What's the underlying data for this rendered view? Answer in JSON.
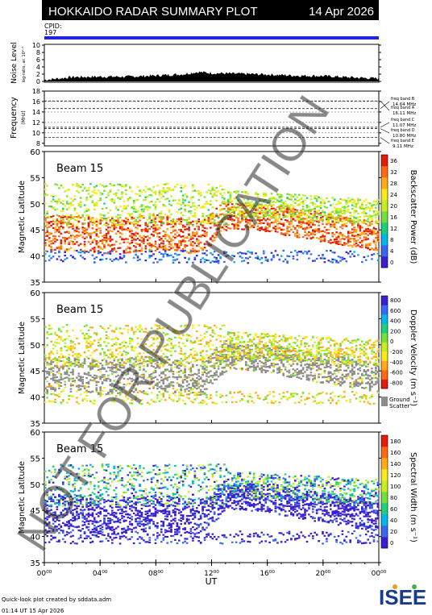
{
  "header": {
    "title": "HOKKAIDO RADAR SUMMARY PLOT",
    "date": "14 Apr 2026",
    "cpid_label": "CPID:",
    "cpid_value": "197"
  },
  "noise_panel": {
    "ylabel": "Noise Level",
    "sublabel": "log-ratio, ar. 10²⁻⁵",
    "ticks": [
      "0",
      "2",
      "4",
      "6",
      "8",
      "10"
    ]
  },
  "freq_panel": {
    "ylabel": "Frequency",
    "unit": "(MHz)",
    "ticks": [
      "8",
      "10",
      "12",
      "14",
      "16",
      "18"
    ],
    "bands": [
      {
        "name": "freq band A",
        "value": "16.11 MHz",
        "mhz": 16.11
      },
      {
        "name": "freq band B",
        "value": "14.64 MHz",
        "mhz": 14.64
      },
      {
        "name": "freq band C",
        "value": "11.07 MHz",
        "mhz": 11.07
      },
      {
        "name": "freq band D",
        "value": "10.80 MHz",
        "mhz": 10.8
      },
      {
        "name": "freq band E",
        "value": "9.11 MHz",
        "mhz": 9.11
      }
    ]
  },
  "panels": [
    {
      "beam": "Beam 15",
      "ylabel": "Magnetic Latitude",
      "cbar_label": "Backscatter Power (dB)",
      "cbar_ticks": [
        "0",
        "4",
        "8",
        "12",
        "16",
        "20",
        "24",
        "28",
        "32",
        "36"
      ],
      "palette": "power",
      "ground": false
    },
    {
      "beam": "Beam 15",
      "ylabel": "Magnetic Latitude",
      "cbar_label": "Doppler Velocity (m s⁻¹)",
      "cbar_ticks": [
        "-800",
        "-600",
        "-400",
        "-200",
        "0",
        "200",
        "400",
        "600",
        "800"
      ],
      "palette": "velocity",
      "ground": true,
      "ground_label1": "Ground",
      "ground_label2": "Scatter"
    },
    {
      "beam": "Beam 15",
      "ylabel": "Magnetic Latitude",
      "cbar_label": "Spectral Width (m s⁻¹)",
      "cbar_ticks": [
        "0",
        "20",
        "40",
        "60",
        "80",
        "100",
        "120",
        "140",
        "160",
        "180"
      ],
      "palette": "width",
      "ground": false
    }
  ],
  "lat_ticks": [
    "35",
    "40",
    "45",
    "50",
    "55",
    "60"
  ],
  "xaxis": {
    "ticks": [
      "00⁰⁰",
      "04⁰⁰",
      "08⁰⁰",
      "12⁰⁰",
      "16⁰⁰",
      "20⁰⁰",
      "00⁰⁰"
    ],
    "label": "UT"
  },
  "footer": {
    "line1": "Quick-look plot created by sddata.adm",
    "line2": "01:14 UT 15 Apr 2026",
    "logo": "ISEE"
  },
  "watermark": "NOT FOR PUBLICATION",
  "chart_data": [
    {
      "type": "area",
      "title": "Noise Level",
      "x_range_hours": [
        0,
        24
      ],
      "ylim": [
        0,
        10
      ],
      "x": [
        0,
        2,
        4,
        6,
        8,
        10,
        11,
        12,
        14,
        16,
        18,
        20,
        22,
        24
      ],
      "values": [
        0.4,
        1.2,
        1.3,
        1.3,
        1.6,
        2.0,
        2.6,
        2.3,
        2.1,
        1.9,
        1.6,
        1.5,
        1.1,
        0.8
      ]
    },
    {
      "type": "line",
      "title": "Frequency (MHz)",
      "ylim": [
        7.5,
        18
      ],
      "series": [
        {
          "name": "freq band A",
          "value": 16.11
        },
        {
          "name": "freq band B",
          "value": 14.64
        },
        {
          "name": "freq band C",
          "value": 11.07
        },
        {
          "name": "freq band D",
          "value": 10.8
        },
        {
          "name": "freq band E",
          "value": 9.11
        }
      ]
    },
    {
      "type": "heatmap",
      "title": "Backscatter Power (dB)",
      "x_range_hours": [
        0,
        24
      ],
      "ylim": [
        35,
        60
      ],
      "zlim": [
        0,
        36
      ]
    },
    {
      "type": "heatmap",
      "title": "Doppler Velocity (m s⁻¹)",
      "x_range_hours": [
        0,
        24
      ],
      "ylim": [
        35,
        60
      ],
      "zlim": [
        -800,
        800
      ]
    },
    {
      "type": "heatmap",
      "title": "Spectral Width (m s⁻¹)",
      "x_range_hours": [
        0,
        24
      ],
      "ylim": [
        35,
        60
      ],
      "zlim": [
        0,
        180
      ]
    }
  ],
  "colors": {
    "cpid_bar": "#1a22ff",
    "ground": "#8c8c8c",
    "power_palette": [
      "#3a1fd0",
      "#3a67f2",
      "#00b5e8",
      "#1fcf7a",
      "#72e03a",
      "#c5ee20",
      "#ffe81c",
      "#ffaa16",
      "#ff6a10",
      "#e21b0b"
    ],
    "velocity_palette": [
      "#e21b0b",
      "#ff6a10",
      "#ffaa16",
      "#ffe81c",
      "#c5ee20",
      "#72e03a",
      "#1fcf7a",
      "#00b5e8",
      "#3a67f2",
      "#3a1fd0"
    ],
    "width_palette": [
      "#3a1fd0",
      "#3a67f2",
      "#00b5e8",
      "#1fcf7a",
      "#72e03a",
      "#c5ee20",
      "#ffe81c",
      "#ffaa16",
      "#ff6a10",
      "#e21b0b"
    ]
  }
}
